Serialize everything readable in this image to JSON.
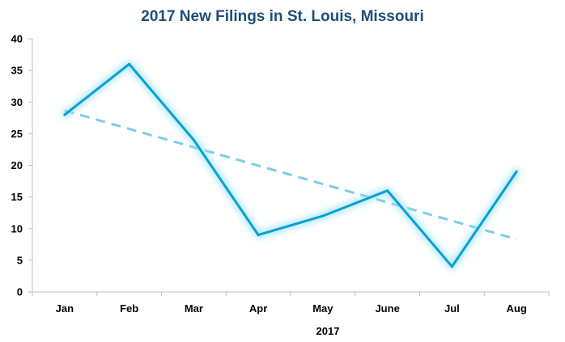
{
  "chart_data": {
    "type": "line",
    "title": "2017 New Filings in St. Louis, Missouri",
    "xlabel": "2017",
    "ylabel": "",
    "categories": [
      "Jan",
      "Feb",
      "Mar",
      "Apr",
      "May",
      "June",
      "Jul",
      "Aug"
    ],
    "series": [
      {
        "values": [
          28,
          36,
          24,
          9,
          12,
          16,
          4,
          19
        ]
      }
    ],
    "trendline": {
      "type": "linear",
      "style": "dashed"
    },
    "ylim": [
      0,
      40
    ],
    "yticks": [
      0,
      5,
      10,
      15,
      20,
      25,
      30,
      35,
      40
    ],
    "grid": false,
    "legend": "none",
    "colors": {
      "series": "#0aa0d0",
      "glow": "#9fe3f7",
      "trendline": "#7dcde8"
    }
  }
}
